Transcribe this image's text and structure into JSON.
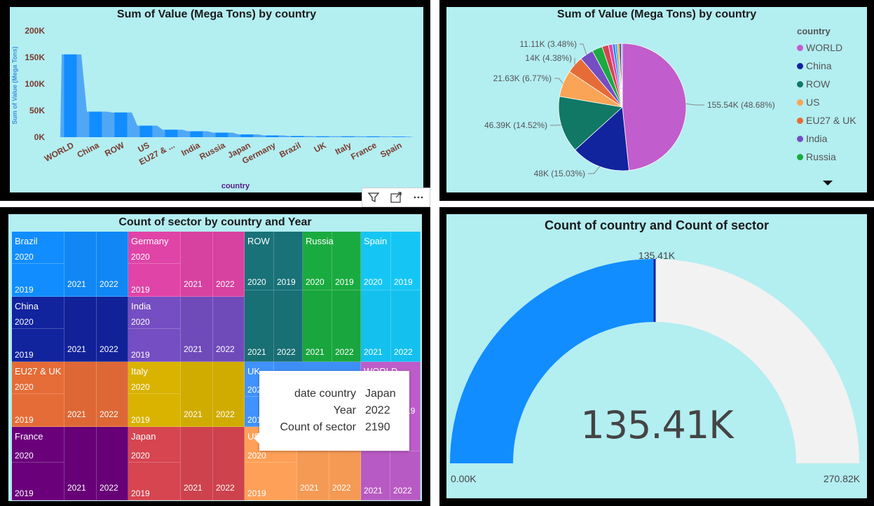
{
  "colors": {
    "panel_bg": "#b3eef1",
    "frame": "#000000"
  },
  "bar_chart": {
    "title": "Sum of Value (Mega Tons) by country",
    "ylabel": "Sum of Value (Mega Tons)",
    "xlabel": "country",
    "yticks": [
      "200K",
      "150K",
      "100K",
      "50K",
      "0K"
    ],
    "xticks": [
      "WORLD",
      "China",
      "ROW",
      "US",
      "EU27 & ...",
      "India",
      "Russia",
      "Japan",
      "Germany",
      "Brazil",
      "UK",
      "Italy",
      "France",
      "Spain"
    ]
  },
  "pie_chart": {
    "title": "Sum of Value (Mega Tons) by country",
    "legend_title": "country",
    "legend": [
      {
        "label": "WORLD",
        "color": "#c15dcc"
      },
      {
        "label": "China",
        "color": "#12239e"
      },
      {
        "label": "ROW",
        "color": "#117865"
      },
      {
        "label": "US",
        "color": "#f9a456"
      },
      {
        "label": "EU27 & UK",
        "color": "#e66c37"
      },
      {
        "label": "India",
        "color": "#744ec2"
      },
      {
        "label": "Russia",
        "color": "#1aab40"
      }
    ],
    "labels": [
      "155.54K (48.68%)",
      "48K (15.03%)",
      "46.39K (14.52%)",
      "21.63K (6.77%)",
      "14K (4.38%)",
      "11.11K (3.48%)"
    ]
  },
  "treemap": {
    "title": "Count of sector by country and Year",
    "groups": [
      {
        "name": "Brazil",
        "color": "#118dff",
        "years": [
          "2020",
          "2019",
          "2021",
          "2022"
        ]
      },
      {
        "name": "China",
        "color": "#12239e",
        "years": [
          "2020",
          "2019",
          "2021",
          "2022"
        ]
      },
      {
        "name": "EU27 & UK",
        "color": "#e66c37",
        "years": [
          "2020",
          "2019",
          "2021",
          "2022"
        ]
      },
      {
        "name": "France",
        "color": "#6b007b",
        "years": [
          "2020",
          "2019",
          "2021",
          "2022"
        ]
      },
      {
        "name": "Germany",
        "color": "#e044a7",
        "years": [
          "2020",
          "2019",
          "2021",
          "2022"
        ]
      },
      {
        "name": "India",
        "color": "#744ec2",
        "years": [
          "2020",
          "2019",
          "2021",
          "2022"
        ]
      },
      {
        "name": "Italy",
        "color": "#d9b300",
        "years": [
          "2020",
          "2019",
          "2021",
          "2022"
        ]
      },
      {
        "name": "Japan",
        "color": "#d64550",
        "years": [
          "2020",
          "2019",
          "2021",
          "2022"
        ]
      },
      {
        "name": "ROW",
        "color": "#197278",
        "years": [
          "2020",
          "2019",
          "2021",
          "2022"
        ]
      },
      {
        "name": "Russia",
        "color": "#1aab40",
        "years": [
          "2020",
          "2019",
          "2021",
          "2022"
        ]
      },
      {
        "name": "Spain",
        "color": "#15c6f4",
        "years": [
          "2020",
          "2019",
          "2021",
          "2022"
        ]
      },
      {
        "name": "UK",
        "color": "#4092ff",
        "years": [
          "202",
          "201"
        ]
      },
      {
        "name": "US",
        "color": "#ffa058",
        "years": [
          "2020",
          "2019",
          "2021",
          "2022"
        ]
      },
      {
        "name": "WORLD",
        "color": "#be5dc9",
        "years": [
          "19",
          "2021",
          "2022"
        ]
      }
    ],
    "tooltip": [
      {
        "label": "date country",
        "value": "Japan"
      },
      {
        "label": "Year",
        "value": "2022"
      },
      {
        "label": "Count of sector",
        "value": "2190"
      }
    ]
  },
  "gauge": {
    "title": "Count of country and Count of sector",
    "value": 135410,
    "min": 0,
    "max": 270820,
    "value_label": "135.41K",
    "target_label": "135.41K",
    "min_label": "0.00K",
    "max_label": "270.82K",
    "fill_color": "#118dff",
    "track_color": "#f2f2f2"
  },
  "chart_data": [
    {
      "type": "bar",
      "title": "Sum of Value (Mega Tons) by country",
      "xlabel": "country",
      "ylabel": "Sum of Value (Mega Tons)",
      "categories": [
        "WORLD",
        "China",
        "ROW",
        "US",
        "EU27 & UK",
        "India",
        "Russia",
        "Japan",
        "Germany",
        "Brazil",
        "UK",
        "Italy",
        "France",
        "Spain"
      ],
      "values": [
        155540,
        48000,
        46390,
        21630,
        14000,
        11110,
        8500,
        5200,
        3300,
        2200,
        1700,
        1600,
        1500,
        1100
      ],
      "ylim": [
        0,
        200000
      ],
      "color": "#118dff"
    },
    {
      "type": "pie",
      "title": "Sum of Value (Mega Tons) by country",
      "categories": [
        "WORLD",
        "China",
        "ROW",
        "US",
        "EU27 & UK",
        "India",
        "Russia",
        "Japan",
        "Germany",
        "Brazil",
        "UK",
        "Italy",
        "France",
        "Spain"
      ],
      "values": [
        155540,
        48000,
        46390,
        21630,
        14000,
        11110,
        8500,
        5200,
        3300,
        2200,
        1700,
        1600,
        1500,
        1100
      ],
      "colors": [
        "#c15dcc",
        "#12239e",
        "#117865",
        "#f9a456",
        "#e66c37",
        "#744ec2",
        "#1aab40",
        "#d64550",
        "#e044a7",
        "#118dff",
        "#4092ff",
        "#d9b300",
        "#6b007b",
        "#15c6f4"
      ]
    }
  ]
}
